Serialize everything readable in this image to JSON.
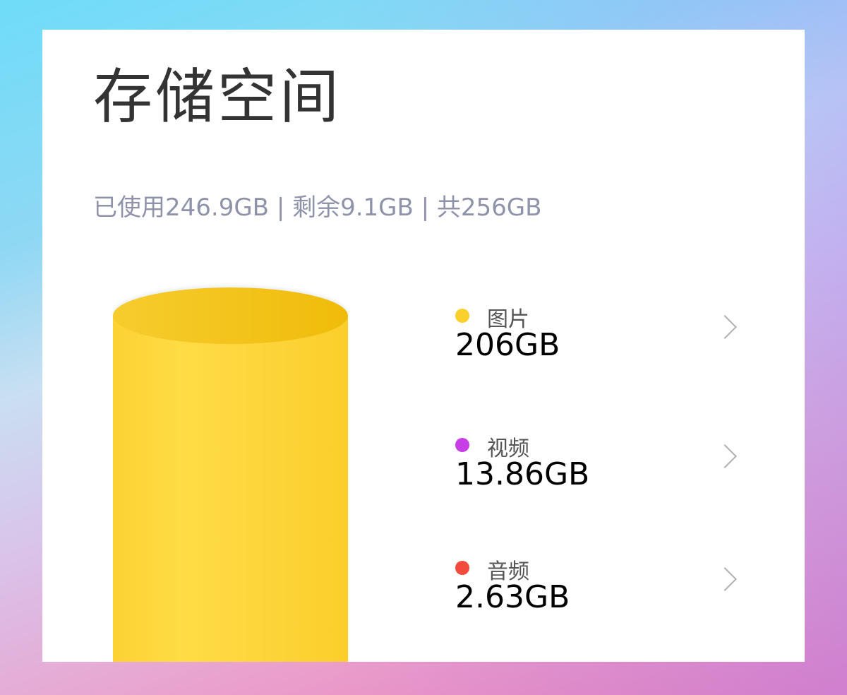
{
  "header": {
    "title": "存储空间"
  },
  "summary": "已使用246.9GB | 剩余9.1GB | 共256GB",
  "chart_color": "#fdd63c",
  "categories": [
    {
      "label": "图片",
      "value": "206GB",
      "color": "#fbd02c",
      "icon": "chevron-right-icon"
    },
    {
      "label": "视频",
      "value": "13.86GB",
      "color": "#c83ee6",
      "icon": "chevron-right-icon"
    },
    {
      "label": "音频",
      "value": "2.63GB",
      "color": "#f24a3c",
      "icon": "chevron-right-icon"
    }
  ]
}
